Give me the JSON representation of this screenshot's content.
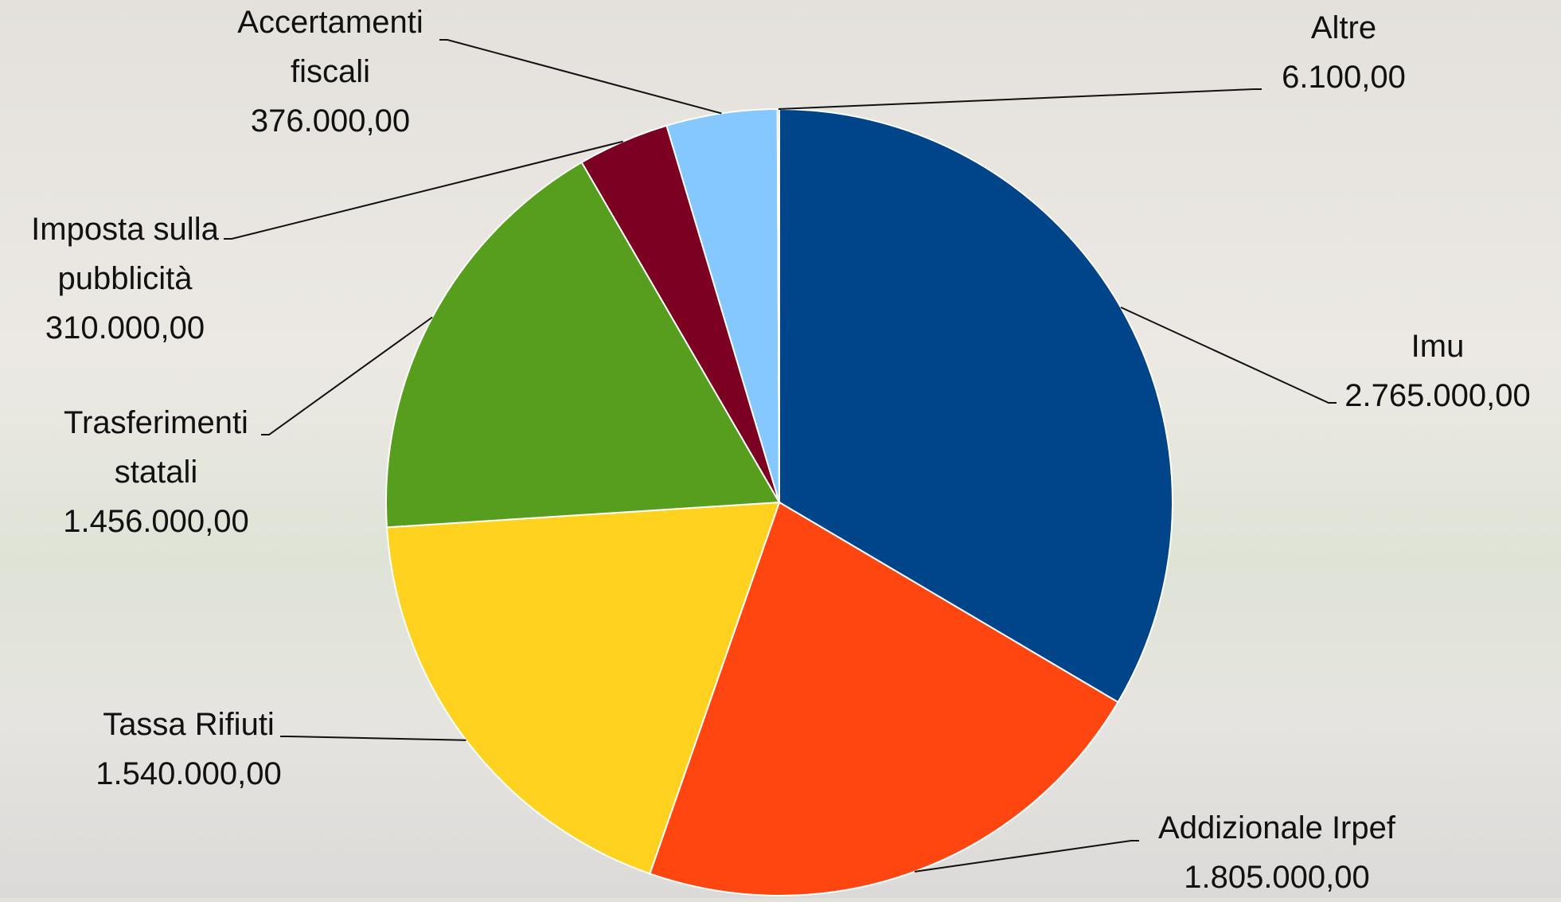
{
  "chart_data": {
    "type": "pie",
    "categories": [
      "Imu",
      "Addizionale Irpef",
      "Tassa Rifiuti",
      "Trasferimenti statali",
      "Imposta sulla pubblicità",
      "Accertamenti fiscali",
      "Altre"
    ],
    "values": [
      2765000,
      1805000,
      1540000,
      1456000,
      310000,
      376000,
      6100
    ],
    "value_labels": [
      "2.765.000,00",
      "1.805.000,00",
      "1.540.000,00",
      "1.456.000,00",
      "310.000,00",
      "376.000,00",
      "6.100,00"
    ],
    "colors": [
      "#00448a",
      "#ff4510",
      "#ffd21f",
      "#579e1e",
      "#7c0021",
      "#85c8ff",
      "#a6a6a6"
    ]
  }
}
